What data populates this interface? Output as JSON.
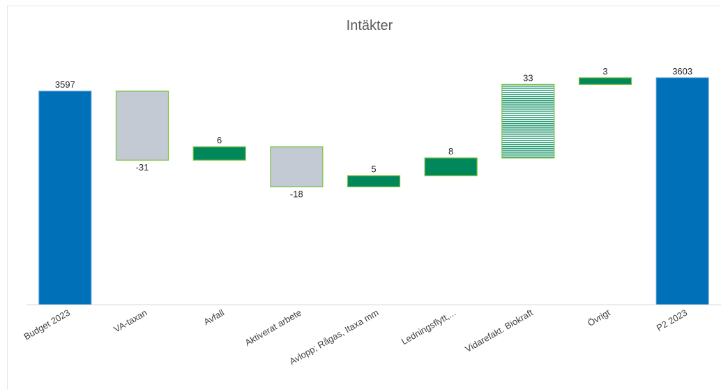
{
  "chart_data": {
    "type": "bar",
    "subtype": "waterfall",
    "title": "Intäkter",
    "xlabel": "",
    "ylabel": "",
    "categories": [
      "Budget 2023",
      "VA-taxan",
      "Avfall",
      "Aktiverat arbete",
      "Avlopp; Rågas, Itaxa mm",
      "Ledningsflytt,...",
      "Vidarefakt. Biokraft",
      "Övrigt",
      "P2 2023"
    ],
    "values": [
      3597,
      -31,
      6,
      -18,
      5,
      8,
      33,
      3,
      3603
    ],
    "labels": [
      "3597",
      "-31",
      "6",
      "-18",
      "5",
      "8",
      "33",
      "3",
      "3603"
    ],
    "kinds": [
      "total",
      "decrease",
      "increase",
      "decrease",
      "increase",
      "increase",
      "increase-hatched",
      "increase",
      "total"
    ],
    "legend": "none",
    "grid": false,
    "colors": {
      "total": "#0070b8",
      "increase": "#00875a",
      "decrease": "#c4cad3",
      "border": "#7cc243",
      "hatch": "#2e9e78"
    }
  }
}
